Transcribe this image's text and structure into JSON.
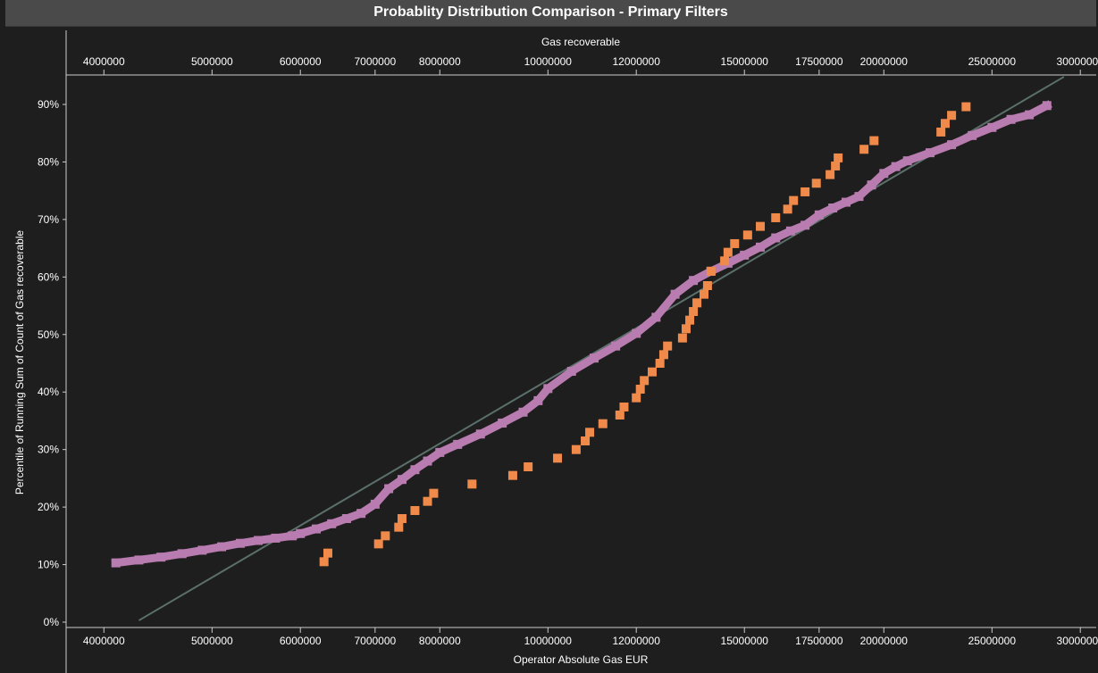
{
  "chart_data": {
    "type": "scatter",
    "title": "Probablity Distribution Comparison - Primary Filters",
    "x_scale": "log-probability",
    "top_axis_label": "Gas recoverable",
    "xlabel": "Operator Absolute Gas EUR",
    "ylabel": "Percentile of Running Sum of Count of Gas recoverable",
    "xlim": [
      3700000,
      31000000
    ],
    "ylim": [
      0,
      95
    ],
    "x_ticks": [
      4000000,
      5000000,
      6000000,
      7000000,
      8000000,
      10000000,
      12000000,
      15000000,
      17500000,
      20000000,
      25000000,
      30000000
    ],
    "x_tick_labels": [
      "4000000",
      "5000000",
      "6000000",
      "7000000",
      "8000000",
      "10000000",
      "12000000",
      "15000000",
      "17500000",
      "20000000",
      "25000000",
      "30000000"
    ],
    "y_ticks": [
      0,
      10,
      20,
      30,
      40,
      50,
      60,
      70,
      80,
      90
    ],
    "y_tick_labels": [
      "0%",
      "10%",
      "20%",
      "30%",
      "40%",
      "50%",
      "60%",
      "70%",
      "80%",
      "90%"
    ],
    "grid": false,
    "colors": {
      "background": "#1e1e1e",
      "axis": "#cccccc",
      "title_bar": "#4a4a4a",
      "series_a": "#b97cb0",
      "series_b": "#f08a4b",
      "fit_line": "#5b6f6b"
    },
    "trend_line": {
      "x": [
        4300000,
        29000000
      ],
      "y": [
        0.3,
        94.8
      ]
    },
    "series": [
      {
        "marker": "square",
        "color": "#b97cb0",
        "x": [
          4100000,
          4300000,
          4500000,
          4700000,
          4900000,
          5100000,
          5300000,
          5500000,
          5700000,
          5900000,
          6000000,
          6200000,
          6400000,
          6600000,
          6800000,
          7000000,
          7200000,
          7400000,
          7600000,
          7800000,
          8000000,
          8300000,
          8700000,
          9100000,
          9500000,
          9800000,
          10000000,
          10500000,
          11000000,
          11500000,
          12000000,
          12500000,
          13000000,
          13500000,
          14000000,
          14500000,
          15000000,
          15500000,
          16000000,
          16500000,
          17000000,
          17500000,
          18000000,
          18500000,
          19000000,
          19500000,
          20000000,
          20500000,
          21000000,
          22000000,
          23000000,
          24000000,
          25000000,
          26000000,
          27000000,
          28000000
        ],
        "y": [
          10.3,
          10.8,
          11.3,
          11.9,
          12.5,
          13.1,
          13.7,
          14.2,
          14.6,
          15.0,
          15.4,
          16.2,
          17.1,
          18.0,
          18.9,
          20.5,
          23.2,
          24.8,
          26.5,
          28.0,
          29.5,
          30.9,
          32.7,
          34.6,
          36.5,
          38.5,
          40.6,
          43.6,
          45.9,
          48.0,
          50.2,
          53.0,
          57.0,
          59.4,
          61.0,
          62.4,
          63.8,
          65.2,
          66.8,
          68.0,
          69.0,
          70.8,
          72.0,
          73.0,
          74.0,
          76.0,
          78.0,
          79.2,
          80.2,
          81.6,
          83.0,
          84.6,
          86.0,
          87.4,
          88.2,
          89.8
        ]
      },
      {
        "marker": "square",
        "color": "#f08a4b",
        "x": [
          6300000,
          6350000,
          7050000,
          7150000,
          7350000,
          7400000,
          7600000,
          7800000,
          7900000,
          8550000,
          9300000,
          9600000,
          10200000,
          10600000,
          10800000,
          10900000,
          11200000,
          11600000,
          11700000,
          12000000,
          12100000,
          12200000,
          12400000,
          12600000,
          12700000,
          12800000,
          13200000,
          13300000,
          13400000,
          13500000,
          13600000,
          13800000,
          13900000,
          14000000,
          14400000,
          14500000,
          14700000,
          15100000,
          15500000,
          16000000,
          16400000,
          16600000,
          17000000,
          17400000,
          17900000,
          18100000,
          18200000,
          19200000,
          19600000,
          22500000,
          22700000,
          23000000,
          23700000
        ],
        "y": [
          10.5,
          12.0,
          13.6,
          15.0,
          16.5,
          18.0,
          19.4,
          21.0,
          22.4,
          24.0,
          25.5,
          27.0,
          28.5,
          30.0,
          31.5,
          33.0,
          34.5,
          36.0,
          37.4,
          39.0,
          40.5,
          42.0,
          43.5,
          45.0,
          46.5,
          48.0,
          49.4,
          51.0,
          52.5,
          54.0,
          55.5,
          57.0,
          58.5,
          61.0,
          62.8,
          64.3,
          65.8,
          67.3,
          68.8,
          70.3,
          71.8,
          73.3,
          74.8,
          76.3,
          77.8,
          79.3,
          80.7,
          82.2,
          83.7,
          85.2,
          86.7,
          88.1,
          89.6
        ]
      }
    ]
  }
}
